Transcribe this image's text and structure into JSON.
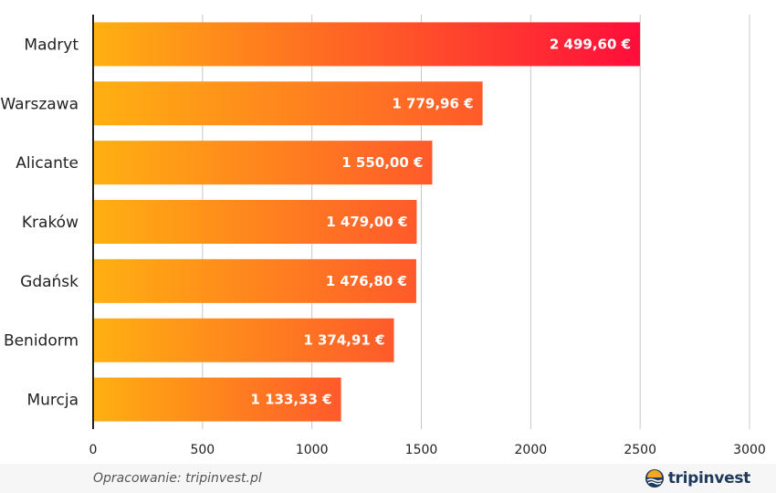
{
  "chart_data": {
    "type": "bar",
    "orientation": "horizontal",
    "categories": [
      "Madryt",
      "Warszawa",
      "Alicante",
      "Kraków",
      "Gdańsk",
      "Benidorm",
      "Murcja"
    ],
    "values": [
      2499.6,
      1779.96,
      1550.0,
      1479.0,
      1476.8,
      1374.91,
      1133.33
    ],
    "value_labels": [
      "2 499,60 €",
      "1 779,96 €",
      "1 550,00 €",
      "1 479,00 €",
      "1 476,80 €",
      "1 374,91 €",
      "1 133,33 €"
    ],
    "xticks": [
      "0",
      "500",
      "1000",
      "1500",
      "2000",
      "2500",
      "3000"
    ],
    "xlim": [
      0,
      3000
    ],
    "grid": true,
    "title": "",
    "xlabel": "",
    "ylabel": "",
    "colors": {
      "bar_start": "#ffb011",
      "bar_end_low": "#ff5a2a",
      "bar_end_high": "#ff0d3b",
      "grid": "#c8c8c8",
      "axis": "#222222"
    }
  },
  "footer": {
    "source": "Opracowanie: tripinvest.pl",
    "logo_text": "tripinvest",
    "logo_icon": "sun-wave-icon"
  }
}
